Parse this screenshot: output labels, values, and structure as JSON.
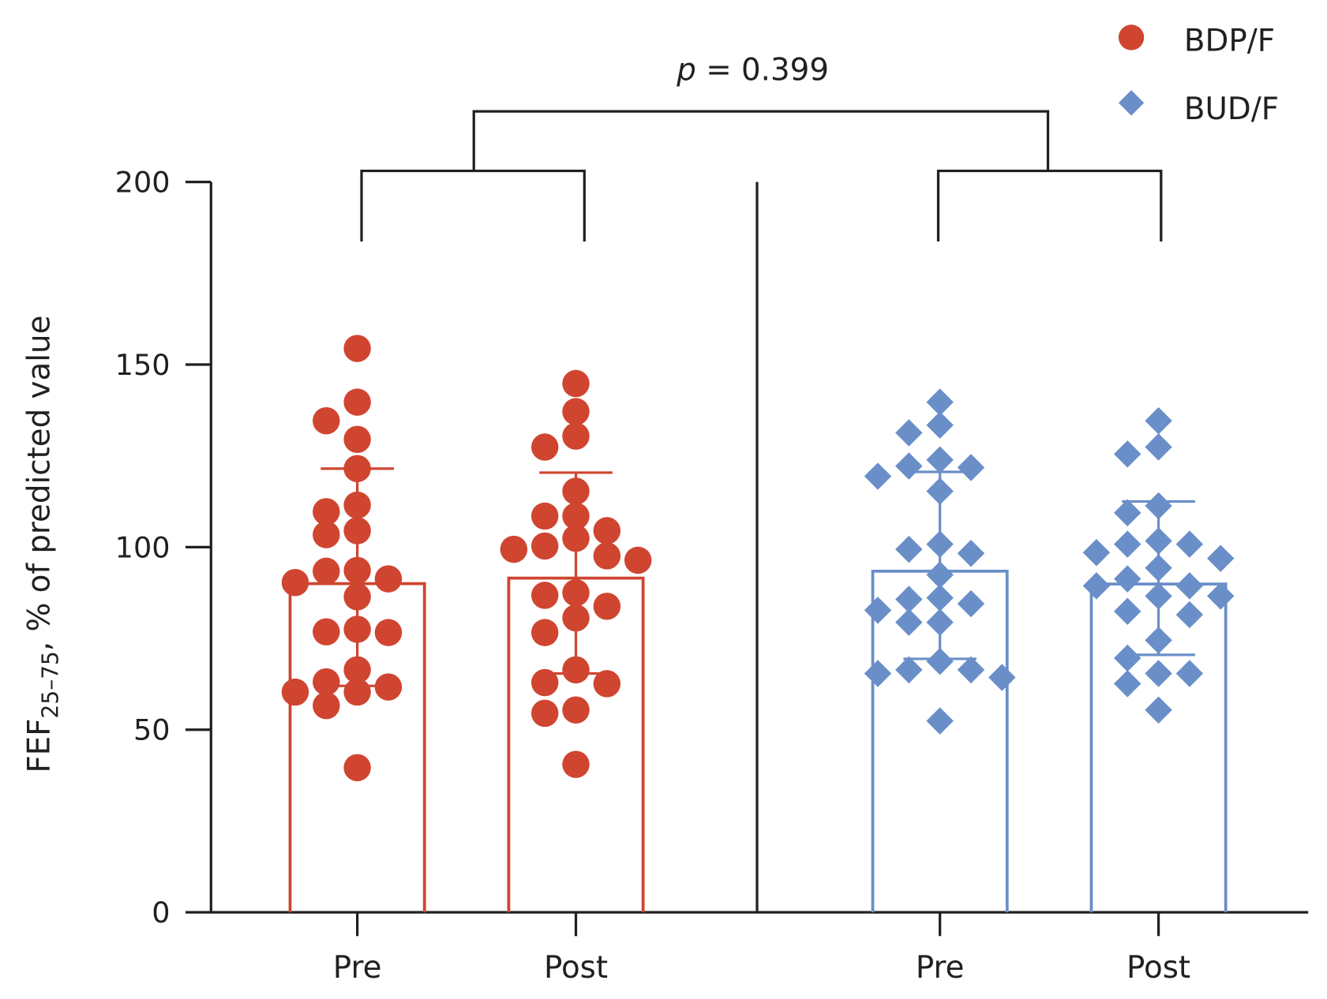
{
  "chart_data": {
    "type": "bar",
    "title": "",
    "xlabel": "",
    "ylabel": {
      "main": "FEF",
      "subscript": "25–75",
      "rest": ", % of predicted value"
    },
    "ylim": [
      0,
      200
    ],
    "yticks": [
      "0",
      "50",
      "100",
      "150",
      "200"
    ],
    "grid": false,
    "legend_position": "top-right",
    "annotation": {
      "p_label": "p",
      "p_value": "= 0.399"
    },
    "groups": [
      {
        "name": "BDP/F",
        "color": "#d04530",
        "marker": "circle",
        "categories": [
          {
            "label": "Pre",
            "mean": 90,
            "sd_upper": 121.5,
            "sd_lower": 62,
            "values": [
              154.4,
              139.7,
              134.6,
              129.5,
              121.5,
              111.5,
              109.7,
              104.5,
              103.4,
              93.6,
              93.4,
              90.3,
              91.3,
              86.4,
              76.8,
              76.6,
              77.5,
              66.4,
              63.1,
              61.7,
              60.3,
              60.3,
              56.6,
              39.6
            ]
          },
          {
            "label": "Post",
            "mean": 91.5,
            "sd_upper": 120.4,
            "sd_lower": 65.4,
            "values": [
              144.8,
              137.1,
              130.4,
              127.4,
              115.3,
              108.5,
              108.5,
              104.5,
              102.4,
              99.4,
              100.3,
              96.4,
              97.6,
              86.8,
              87.5,
              83.8,
              80.6,
              76.6,
              66.4,
              62.9,
              62.6,
              55.4,
              54.5,
              40.5
            ]
          }
        ]
      },
      {
        "name": "BUD/F",
        "color": "#6a8fc8",
        "marker": "diamond",
        "categories": [
          {
            "label": "Pre",
            "mean": 93.4,
            "sd_upper": 120.6,
            "sd_lower": 69.4,
            "values": [
              139.7,
              131.3,
              133.4,
              122.2,
              121.8,
              123.9,
              119.4,
              115.3,
              100.8,
              99.4,
              98.3,
              92.4,
              84.5,
              82.7,
              85.7,
              86.1,
              79.4,
              79.4,
              68.7,
              65.4,
              66.4,
              64.3,
              66.4,
              52.4
            ]
          },
          {
            "label": "Post",
            "mean": 89.9,
            "sd_upper": 112.5,
            "sd_lower": 70.5,
            "values": [
              134.6,
              127.4,
              125.5,
              111.3,
              109.4,
              100.8,
              101.7,
              100.8,
              96.9,
              98.5,
              94.3,
              89.4,
              91.3,
              89.4,
              86.6,
              86.6,
              81.5,
              82.4,
              74.5,
              69.6,
              65.4,
              65.4,
              62.6,
              55.4
            ]
          }
        ]
      }
    ]
  }
}
